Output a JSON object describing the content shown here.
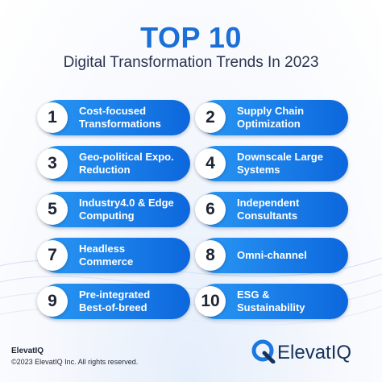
{
  "header": {
    "title": "TOP 10",
    "subtitle": "Digital Transformation Trends In 2023"
  },
  "items": [
    {
      "number": 1,
      "lines": [
        "Cost-focused",
        "Transformations"
      ]
    },
    {
      "number": 2,
      "lines": [
        "Supply Chain",
        "Optimization"
      ]
    },
    {
      "number": 3,
      "lines": [
        "Geo-political Expo.",
        "Reduction"
      ]
    },
    {
      "number": 4,
      "lines": [
        "Downscale Large",
        "Systems"
      ]
    },
    {
      "number": 5,
      "lines": [
        "Industry4.0 & Edge",
        "Computing"
      ]
    },
    {
      "number": 6,
      "lines": [
        "Independent",
        "Consultants"
      ]
    },
    {
      "number": 7,
      "lines": [
        "Headless",
        "Commerce"
      ]
    },
    {
      "number": 8,
      "lines": [
        "Omni-channel"
      ]
    },
    {
      "number": 9,
      "lines": [
        "Pre-integrated",
        "Best-of-breed"
      ]
    },
    {
      "number": 10,
      "lines": [
        "ESG &",
        "Sustainability"
      ]
    }
  ],
  "footer": {
    "company": "ElevatIQ",
    "copyright": "©2023 ElevatIQ Inc. All rights reserved.",
    "logo_text": "ElevatIQ"
  }
}
